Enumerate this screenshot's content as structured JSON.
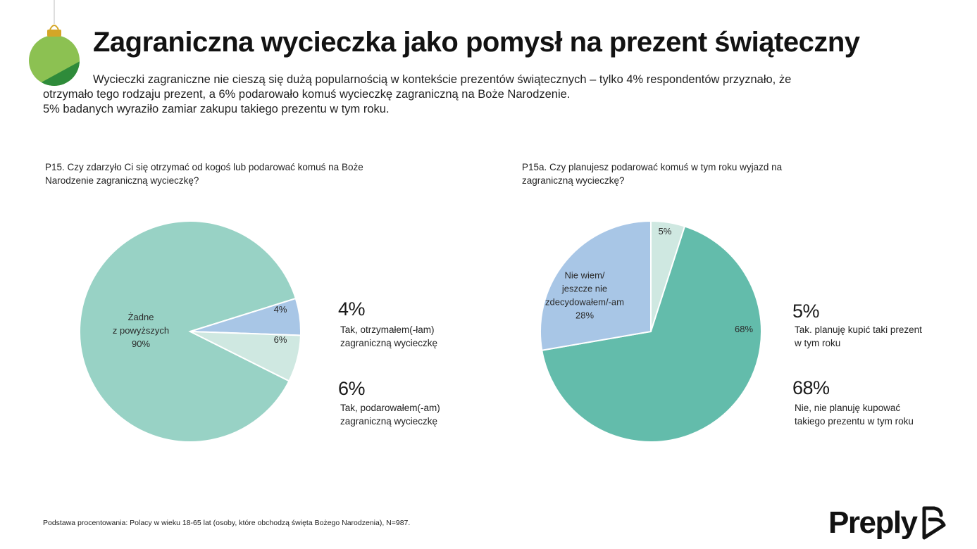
{
  "title": "Zagraniczna wycieczka jako pomysł na prezent świąteczny",
  "intro": {
    "line1": "Wycieczki zagraniczne nie cieszą się dużą popularnością w kontekście prezentów świątecznych – tylko 4% respondentów przyznało, że",
    "line2": "otrzymało tego rodzaju prezent, a 6% podarowało komuś wycieczkę zagraniczną na Boże Narodzenie.",
    "line3": "5% badanych wyraziło zamiar zakupu takiego prezentu w tym roku."
  },
  "colors": {
    "teal_light": "#98d2c5",
    "teal_dark": "#63bcab",
    "blue_light": "#a8c6e6",
    "mint_pale": "#cfe8e1",
    "ornament_light": "#8cc152",
    "ornament_dark": "#2e8b3a",
    "ornament_cap": "#d4a627"
  },
  "chart_data": [
    {
      "type": "pie",
      "title": "P15. Czy zdarzyło Ci się otrzymać od kogoś lub podarować komuś na Boże Narodzenie zagraniczną wycieczkę?",
      "slices": [
        {
          "label": "Żadne z powyższych",
          "value": 90,
          "display": "90%",
          "label_lines": [
            "Żadne",
            "z powyższych",
            "90%"
          ],
          "color": "#98d2c5"
        },
        {
          "label": "Tak, otrzymałem(-łam) zagraniczną wycieczkę",
          "value": 4,
          "display": "4%",
          "label_lines": [
            "4%"
          ],
          "color": "#a8c6e6"
        },
        {
          "label": "Tak, podarowałem(-am) zagraniczną wycieczkę",
          "value": 6,
          "display": "6%",
          "label_lines": [
            "6%"
          ],
          "color": "#cfe8e1"
        }
      ],
      "legend": [
        {
          "pct": "4%",
          "text": "Tak, otrzymałem(-łam) zagraniczną wycieczkę"
        },
        {
          "pct": "6%",
          "text": "Tak, podarowałem(-am) zagraniczną wycieczkę"
        }
      ]
    },
    {
      "type": "pie",
      "title": "P15a. Czy planujesz podarować komuś w tym roku wyjazd na zagraniczną wycieczkę?",
      "slices": [
        {
          "label": "Tak, planuję kupić taki prezent w tym roku",
          "value": 5,
          "display": "5%",
          "label_lines": [
            "5%"
          ],
          "color": "#cfe8e1"
        },
        {
          "label": "Nie, nie planuję kupować takiego prezentu w tym roku",
          "value": 68,
          "display": "68%",
          "label_lines": [
            "68%"
          ],
          "color": "#63bcab"
        },
        {
          "label": "Nie wiem/ jeszcze nie zdecydowałem/-am",
          "value": 28,
          "display": "28%",
          "label_lines": [
            "Nie wiem/",
            "jeszcze nie",
            "zdecydowałem/-am",
            "28%"
          ],
          "color": "#a8c6e6"
        }
      ],
      "legend": [
        {
          "pct": "5%",
          "text": "Tak. planuję kupić taki prezent w tym roku"
        },
        {
          "pct": "68%",
          "text": "Nie, nie planuję kupować takiego prezentu w tym roku"
        }
      ]
    }
  ],
  "footnote": "Podstawa procentowania: Polacy w wieku 18-65 lat (osoby, które obchodzą święta Bożego Narodzenia), N=987.",
  "logo": {
    "text": "Preply",
    "icon": "preply-logo-icon"
  }
}
